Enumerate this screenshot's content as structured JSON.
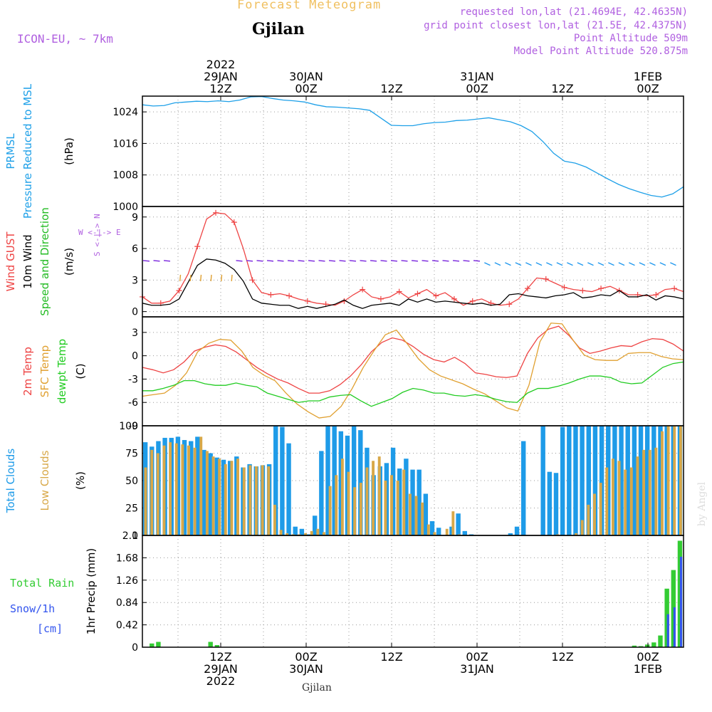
{
  "header": {
    "product": "Forecast Meteogram",
    "location": "Gjilan",
    "model": "ICON-EU, ~ 7km",
    "requested": "requested lon,lat (21.4694E, 42.4635N)",
    "gridpoint": "grid point closest lon,lat (21.5E, 42.4375N)",
    "point_alt": "Point Altitude 509m",
    "model_alt": "Model Point Altitude 520.875m",
    "credit": "by Angel",
    "footer_location": "Gjilan"
  },
  "colors": {
    "pressure": "#1ea0e8",
    "gust": "#ee4444",
    "wind": "#000000",
    "direction_label": "#22bb22",
    "temp2m": "#ee4444",
    "sfc": "#e0a030",
    "dewpt": "#22cc22",
    "total_cloud": "#1e9be8",
    "low_cloud": "#d8a848",
    "rain": "#33cc33",
    "snow": "#3355ee",
    "header_purple": "#b060e0",
    "header_gold": "#f0c060"
  },
  "time_axis": {
    "top_labels": [
      {
        "t": 12,
        "lines": [
          "2022",
          "29JAN",
          "12Z"
        ]
      },
      {
        "t": 24,
        "lines": [
          "30JAN",
          "00Z"
        ]
      },
      {
        "t": 36,
        "lines": [
          "12Z"
        ]
      },
      {
        "t": 48,
        "lines": [
          "31JAN",
          "00Z"
        ]
      },
      {
        "t": 60,
        "lines": [
          "12Z"
        ]
      },
      {
        "t": 72,
        "lines": [
          "1FEB",
          "00Z"
        ]
      }
    ],
    "bottom_labels": [
      {
        "t": 12,
        "lines": [
          "12Z",
          "29JAN",
          "2022"
        ]
      },
      {
        "t": 24,
        "lines": [
          "00Z",
          "30JAN"
        ]
      },
      {
        "t": 36,
        "lines": [
          "12Z"
        ]
      },
      {
        "t": 48,
        "lines": [
          "00Z",
          "31JAN"
        ]
      },
      {
        "t": 60,
        "lines": [
          "12Z"
        ]
      },
      {
        "t": 72,
        "lines": [
          "00Z",
          "1FEB"
        ]
      }
    ]
  },
  "chart_data": [
    {
      "type": "line",
      "panel": "pressure",
      "left_labels": [
        {
          "text": "PRMSL",
          "color": "pressure"
        },
        {
          "text": "Pressure Reduced to MSL",
          "color": "pressure"
        },
        {
          "text": "(hPa)",
          "color": "wind"
        }
      ],
      "ylim": [
        1000,
        1028
      ],
      "yticks": [
        "1000",
        "1008",
        "1016",
        "1024"
      ],
      "series": [
        {
          "values": [
            1025.8,
            1025.5,
            1025.6,
            1026.3,
            1026.5,
            1026.7,
            1026.6,
            1026.8,
            1026.6,
            1027.0,
            1027.8,
            1027.9,
            1027.4,
            1027.0,
            1026.8,
            1026.5,
            1025.8,
            1025.3,
            1025.2,
            1025.0,
            1024.8,
            1024.4,
            1022.5,
            1020.6,
            1020.5,
            1020.5,
            1021.0,
            1021.3,
            1021.4,
            1021.8,
            1021.9,
            1022.2,
            1022.5,
            1022.0,
            1021.5,
            1020.5,
            1019.0,
            1016.5,
            1013.5,
            1011.5,
            1011.0,
            1010.0,
            1008.5,
            1007.0,
            1005.6,
            1004.5,
            1003.6,
            1002.8,
            1002.4,
            1003.2,
            1005.0
          ],
          "color": "pressure"
        }
      ]
    },
    {
      "type": "line",
      "panel": "wind",
      "left_labels": [
        {
          "text": "Wind GUST",
          "color": "gust"
        },
        {
          "text": "10m Wind",
          "color": "wind"
        },
        {
          "text": "Speed and Direction",
          "color": "direction_label"
        },
        {
          "text": "(m/s)",
          "color": "wind"
        }
      ],
      "compass": [
        "N",
        "S",
        "W",
        "E"
      ],
      "ylim": [
        -0.5,
        10
      ],
      "yticks": [
        "0",
        "3",
        "6",
        "9"
      ],
      "series": [
        {
          "name": "gust",
          "values": [
            1.4,
            0.8,
            0.8,
            1.0,
            2.0,
            3.6,
            6.2,
            8.8,
            9.4,
            9.3,
            8.5,
            6.0,
            3.0,
            1.8,
            1.6,
            1.7,
            1.5,
            1.2,
            1.0,
            0.8,
            0.7,
            0.6,
            1.0,
            1.6,
            2.1,
            1.4,
            1.2,
            1.4,
            1.9,
            1.3,
            1.7,
            2.1,
            1.5,
            1.8,
            1.2,
            0.6,
            1.0,
            1.2,
            0.8,
            0.6,
            0.7,
            1.2,
            2.2,
            3.2,
            3.1,
            2.7,
            2.3,
            2.1,
            2.0,
            1.9,
            2.2,
            2.4,
            2.0,
            1.6,
            1.6,
            1.5,
            1.6,
            2.1,
            2.2,
            1.9
          ],
          "color": "gust"
        },
        {
          "name": "wind",
          "values": [
            0.8,
            0.6,
            0.6,
            0.7,
            1.2,
            2.8,
            4.4,
            5.0,
            4.9,
            4.6,
            4.0,
            2.9,
            1.2,
            0.8,
            0.7,
            0.6,
            0.6,
            0.3,
            0.5,
            0.3,
            0.5,
            0.7,
            1.1,
            0.6,
            0.3,
            0.6,
            0.7,
            0.8,
            0.6,
            1.2,
            0.9,
            1.2,
            0.9,
            1.0,
            0.9,
            0.8,
            0.7,
            0.8,
            0.6,
            0.7,
            1.6,
            1.7,
            1.5,
            1.4,
            1.3,
            1.5,
            1.6,
            1.8,
            1.3,
            1.4,
            1.6,
            1.5,
            2.0,
            1.4,
            1.4,
            1.6,
            1.1,
            1.5,
            1.4,
            1.2
          ],
          "color": "wind"
        }
      ]
    },
    {
      "type": "line",
      "panel": "temperature",
      "left_labels": [
        {
          "text": "2m Temp",
          "color": "temp2m"
        },
        {
          "text": "SFC Temp",
          "color": "sfc"
        },
        {
          "text": "dewpt Temp",
          "color": "dewpt"
        },
        {
          "text": "(C)",
          "color": "wind"
        }
      ],
      "ylim": [
        -9,
        5
      ],
      "yticks": [
        "-9",
        "-6",
        "-3",
        "0",
        "3"
      ],
      "series": [
        {
          "name": "2m",
          "values": [
            -1.5,
            -1.8,
            -2.2,
            -1.8,
            -0.8,
            0.6,
            1.1,
            1.4,
            1.2,
            0.5,
            -0.5,
            -1.5,
            -2.3,
            -3.0,
            -3.5,
            -4.2,
            -4.8,
            -4.8,
            -4.5,
            -3.7,
            -2.6,
            -1.2,
            0.5,
            1.7,
            2.3,
            2.0,
            1.2,
            0.2,
            -0.5,
            -0.8,
            -0.2,
            -1.0,
            -2.2,
            -2.4,
            -2.7,
            -2.8,
            -2.6,
            0.3,
            2.3,
            3.4,
            3.8,
            2.6,
            1.0,
            0.3,
            0.6,
            1.0,
            1.3,
            1.2,
            1.8,
            2.2,
            2.1,
            1.5,
            0.6
          ],
          "color": "temp2m"
        },
        {
          "name": "SFC",
          "values": [
            -5.2,
            -5.0,
            -4.8,
            -3.8,
            -2.2,
            0.5,
            1.6,
            2.1,
            2.0,
            0.6,
            -1.5,
            -2.5,
            -3.2,
            -4.8,
            -6.2,
            -7.2,
            -8.0,
            -7.8,
            -6.5,
            -4.2,
            -1.5,
            0.7,
            2.7,
            3.3,
            1.5,
            -0.4,
            -1.8,
            -2.6,
            -3.1,
            -3.6,
            -4.3,
            -4.9,
            -5.8,
            -6.7,
            -7.1,
            -3.8,
            1.8,
            4.2,
            4.1,
            2.0,
            0.1,
            -0.5,
            -0.6,
            -0.6,
            0.3,
            0.4,
            0.4,
            -0.1,
            -0.4,
            -0.5
          ],
          "color": "sfc"
        },
        {
          "name": "dewpt",
          "values": [
            -4.5,
            -4.5,
            -4.2,
            -3.8,
            -3.2,
            -3.2,
            -3.6,
            -3.8,
            -3.8,
            -3.5,
            -3.8,
            -4.0,
            -4.8,
            -5.2,
            -5.6,
            -6.0,
            -5.8,
            -5.8,
            -5.3,
            -5.1,
            -5.0,
            -5.8,
            -6.5,
            -6.0,
            -5.5,
            -4.7,
            -4.2,
            -4.4,
            -4.8,
            -4.8,
            -5.1,
            -5.2,
            -5.0,
            -5.2,
            -5.6,
            -5.9,
            -6.0,
            -4.8,
            -4.2,
            -4.2,
            -3.9,
            -3.5,
            -3.0,
            -2.6,
            -2.6,
            -2.8,
            -3.4,
            -3.6,
            -3.5,
            -2.5,
            -1.5,
            -1.0,
            -0.8
          ],
          "color": "dewpt"
        }
      ]
    },
    {
      "type": "bar",
      "panel": "clouds",
      "left_labels": [
        {
          "text": "Total Clouds",
          "color": "total_cloud"
        },
        {
          "text": "Low Clouds",
          "color": "low_cloud"
        },
        {
          "text": "(%)",
          "color": "wind"
        }
      ],
      "ylim": [
        0,
        100
      ],
      "yticks": [
        "0",
        "25",
        "50",
        "75",
        "100"
      ],
      "series": [
        {
          "name": "total",
          "values": [
            85,
            81,
            86,
            89,
            89,
            90,
            87,
            86,
            90,
            78,
            75,
            71,
            69,
            68,
            72,
            62,
            65,
            63,
            64,
            65,
            100,
            99,
            84,
            8,
            6,
            1,
            18,
            77,
            100,
            100,
            95,
            91,
            100,
            96,
            80,
            55,
            63,
            66,
            80,
            61,
            70,
            60,
            60,
            38,
            13,
            7,
            0,
            8,
            20,
            4,
            1,
            0,
            0,
            0,
            0,
            0,
            2,
            8,
            86,
            0,
            0,
            100,
            58,
            57,
            99,
            100,
            100,
            100,
            100,
            100,
            100,
            100,
            100,
            100,
            100,
            100,
            100,
            100,
            100,
            100,
            100,
            100,
            100
          ],
          "color": "total_cloud"
        },
        {
          "name": "low",
          "values": [
            62,
            78,
            75,
            82,
            85,
            84,
            83,
            82,
            80,
            90,
            77,
            72,
            70,
            65,
            68,
            70,
            62,
            64,
            63,
            64,
            63,
            28,
            5,
            2,
            1,
            1,
            2,
            4,
            6,
            3,
            45,
            55,
            70,
            58,
            44,
            48,
            62,
            68,
            72,
            50,
            55,
            50,
            60,
            38,
            36,
            30,
            10,
            3,
            0,
            6,
            22,
            1,
            0,
            0,
            0,
            0,
            0,
            0,
            0,
            0,
            0,
            0,
            0,
            0,
            0,
            0,
            0,
            1,
            0,
            0,
            2,
            14,
            28,
            38,
            48,
            62,
            70,
            68,
            60,
            62,
            72,
            78,
            78,
            80,
            95,
            100,
            100,
            100
          ],
          "color": "low_cloud"
        }
      ]
    },
    {
      "type": "bar",
      "panel": "precip",
      "left_labels": [
        {
          "text": "Total  Rain",
          "color": "rain"
        },
        {
          "text": "Snow/1h",
          "color": "snow"
        },
        {
          "text": "[cm]",
          "color": "snow"
        },
        {
          "text": "1hr Precip (mm)",
          "color": "wind"
        }
      ],
      "ylim": [
        0,
        2.1
      ],
      "yticks": [
        "0",
        "0.42",
        "0.84",
        "1.26",
        "1.68",
        "2.1"
      ],
      "series": [
        {
          "name": "rain",
          "values": [
            0,
            0.07,
            0.1,
            0,
            0,
            0,
            0,
            0,
            0,
            0,
            0.1,
            0.04,
            0,
            0,
            0,
            0,
            0,
            0,
            0,
            0,
            0,
            0,
            0,
            0,
            0,
            0,
            0,
            0,
            0,
            0,
            0,
            0,
            0,
            0,
            0,
            0,
            0,
            0,
            0,
            0,
            0,
            0,
            0,
            0,
            0,
            0,
            0,
            0,
            0,
            0,
            0,
            0,
            0,
            0,
            0,
            0,
            0,
            0,
            0,
            0,
            0,
            0,
            0,
            0,
            0,
            0,
            0,
            0,
            0,
            0,
            0,
            0,
            0,
            0,
            0,
            0.03,
            0.02,
            0.05,
            0.09,
            0.22,
            1.1,
            1.45,
            2.0
          ],
          "color": "rain"
        },
        {
          "name": "snow",
          "values": [
            0,
            0,
            0,
            0,
            0,
            0,
            0,
            0,
            0,
            0,
            0,
            0,
            0,
            0,
            0,
            0,
            0,
            0,
            0,
            0,
            0,
            0,
            0,
            0,
            0,
            0,
            0,
            0,
            0,
            0,
            0,
            0,
            0,
            0,
            0,
            0,
            0,
            0,
            0,
            0,
            0,
            0,
            0,
            0,
            0,
            0,
            0,
            0,
            0,
            0,
            0,
            0,
            0,
            0,
            0,
            0,
            0,
            0,
            0,
            0,
            0,
            0,
            0,
            0,
            0,
            0,
            0,
            0,
            0,
            0,
            0,
            0,
            0,
            0,
            0,
            0,
            0,
            0,
            0,
            0,
            0.62,
            0.75,
            1.7
          ],
          "color": "snow"
        }
      ]
    }
  ]
}
